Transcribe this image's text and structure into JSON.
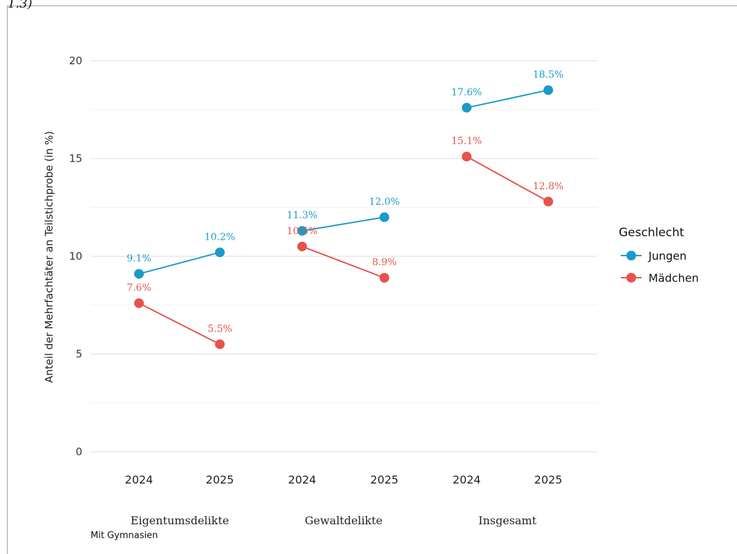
{
  "corner_text": "1.3)",
  "chart_data": {
    "type": "line",
    "ylabel": "Anteil der Mehrfachtäter an Teilstichprobe (in %)",
    "ylim": [
      0,
      20
    ],
    "yticks": [
      0,
      5,
      10,
      15,
      20
    ],
    "groups": [
      {
        "name": "Eigentumsdelikte",
        "x": [
          "2024",
          "2025"
        ]
      },
      {
        "name": "Gewaltdelikte",
        "x": [
          "2024",
          "2025"
        ]
      },
      {
        "name": "Insgesamt",
        "x": [
          "2024",
          "2025"
        ]
      }
    ],
    "series": [
      {
        "name": "Jungen",
        "color": "#1a9bc9",
        "values": [
          [
            9.1,
            10.2
          ],
          [
            11.3,
            12.0
          ],
          [
            17.6,
            18.5
          ]
        ],
        "labels": [
          [
            "9.1%",
            "10.2%"
          ],
          [
            "11.3%",
            "12.0%"
          ],
          [
            "17.6%",
            "18.5%"
          ]
        ]
      },
      {
        "name": "Mädchen",
        "color": "#e5534b",
        "values": [
          [
            7.6,
            5.5
          ],
          [
            10.5,
            8.9
          ],
          [
            15.1,
            12.8
          ]
        ],
        "labels": [
          [
            "7.6%",
            "5.5%"
          ],
          [
            "10.5%",
            "8.9%"
          ],
          [
            "15.1%",
            "12.8%"
          ]
        ]
      }
    ],
    "legend": {
      "title": "Geschlecht",
      "position": "right"
    },
    "grid": true,
    "caption": "Mit Gymnasien"
  }
}
